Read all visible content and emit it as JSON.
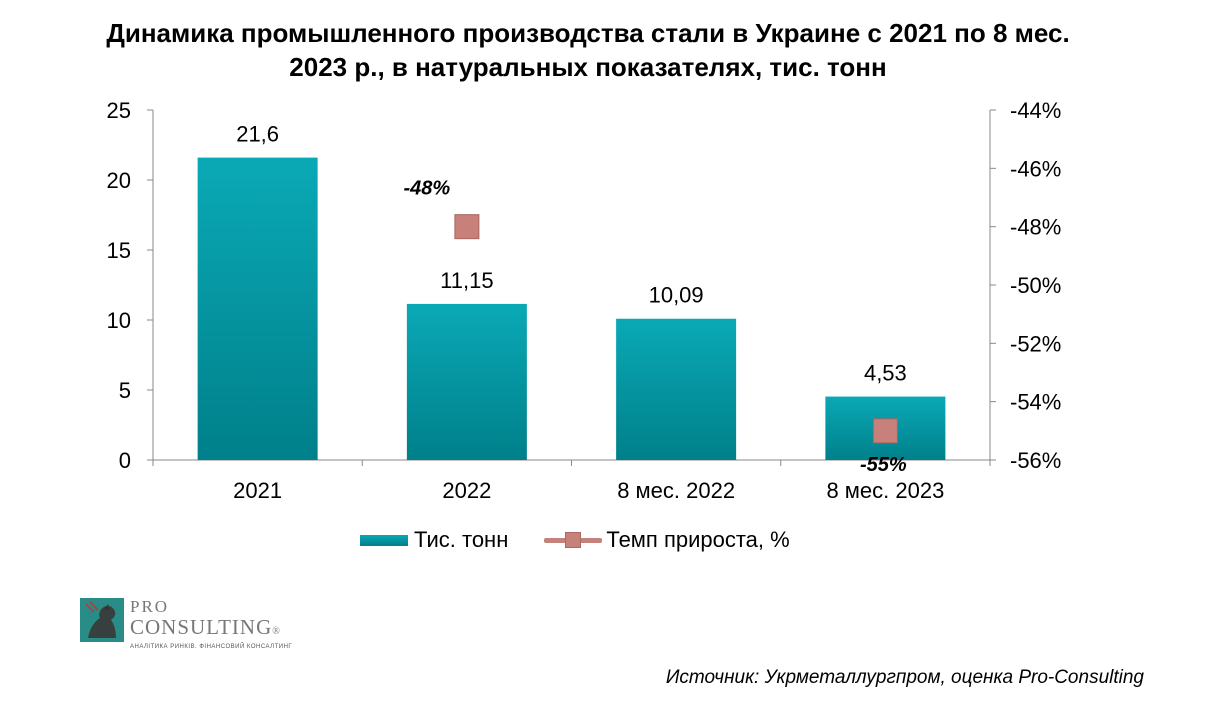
{
  "chart_data": {
    "type": "bar",
    "title": "Динамика промышленного производства стали в Украине с 2021 по 8 мес. 2023 р., в натуральных показателях, тис. тонн",
    "title_lines": [
      "Динамика промышленного производства стали в Украине с 2021 по 8 мес.",
      "2023 р., в натуральных показателях, тис. тонн"
    ],
    "categories": [
      "2021",
      "2022",
      "8 мес. 2022",
      "8 мес. 2023"
    ],
    "series": [
      {
        "name": "Тис. тонн",
        "type": "bar",
        "values": [
          21.6,
          11.15,
          10.09,
          4.53
        ],
        "value_labels": [
          "21,6",
          "11,15",
          "10,09",
          "4,53"
        ],
        "color": "#0aa3b0"
      },
      {
        "name": "Темп прироста, %",
        "type": "line",
        "axis": "right",
        "values": [
          null,
          -48,
          null,
          -55
        ],
        "value_labels": [
          "",
          "-48%",
          "",
          "-55%"
        ],
        "color": "#c8807a"
      }
    ],
    "y_left": {
      "min": 0,
      "max": 25,
      "ticks": [
        0,
        5,
        10,
        15,
        20,
        25
      ]
    },
    "y_right": {
      "min": -56,
      "max": -44,
      "ticks": [
        -56,
        -54,
        -52,
        -50,
        -48,
        -46,
        -44
      ],
      "tick_labels": [
        "-56%",
        "-54%",
        "-52%",
        "-50%",
        "-48%",
        "-46%",
        "-44%"
      ]
    },
    "grid": false,
    "legend_position": "bottom"
  },
  "legend": {
    "bar_label": "Тис. тонн",
    "line_label": "Темп прироста, %"
  },
  "logo": {
    "pro": "PRO",
    "name": "CONSULTING",
    "reg": "®",
    "tagline": "АНАЛІТИКА РИНКІВ. ФІНАНСОВИЙ КОНСАЛТИНГ"
  },
  "source": "Источник: Укрметаллургпром, оценка Pro-Consulting"
}
